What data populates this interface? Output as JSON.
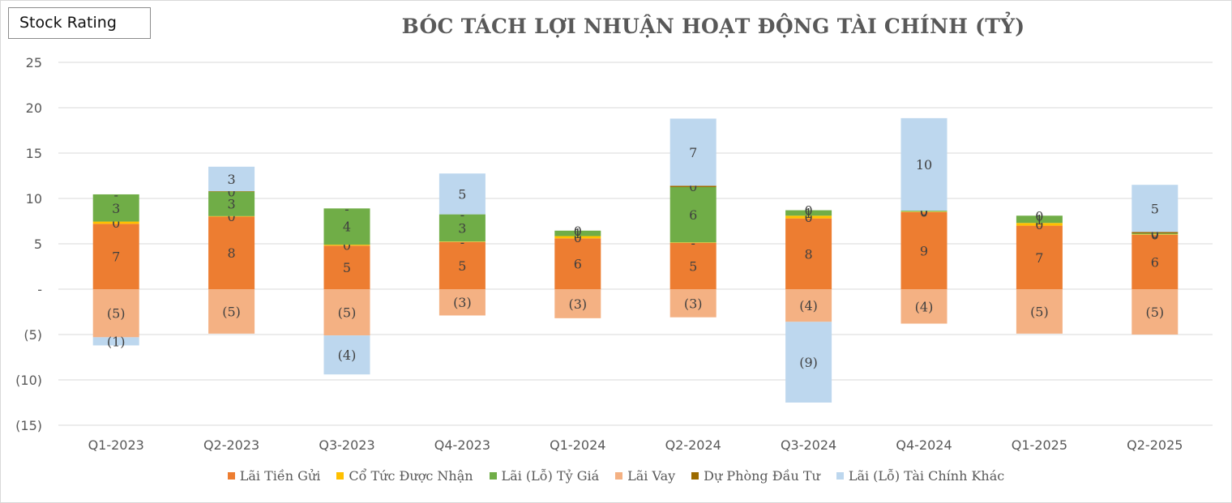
{
  "badge_label": "Stock Rating",
  "chart_data": {
    "type": "bar",
    "stacked": true,
    "title": "BÓC TÁCH LỢI NHUẬN HOẠT ĐỘNG TÀI CHÍNH (TỶ)",
    "categories": [
      "Q1-2023",
      "Q2-2023",
      "Q3-2023",
      "Q4-2023",
      "Q1-2024",
      "Q2-2024",
      "Q3-2024",
      "Q4-2024",
      "Q1-2025",
      "Q2-2025"
    ],
    "ylim": [
      -15,
      25
    ],
    "yticks": [
      25,
      20,
      15,
      10,
      5,
      0,
      -5,
      -10,
      -15
    ],
    "ytick_labels": [
      "25",
      "20",
      "15",
      "10",
      "5",
      "-",
      "(5)",
      "(10)",
      "(15)"
    ],
    "grid": true,
    "legend_position": "bottom",
    "series": [
      {
        "name": "Lãi Tiền Gửi",
        "color": "#ED7D31",
        "values": [
          7.2,
          8.0,
          4.8,
          5.2,
          5.6,
          5.1,
          7.8,
          8.5,
          7.0,
          6.0
        ],
        "labels": [
          "7",
          "8",
          "5",
          "5",
          "6",
          "5",
          "8",
          "9",
          "7",
          "6"
        ]
      },
      {
        "name": "Cổ Tức Được Nhận",
        "color": "#FFC000",
        "values": [
          0.25,
          0.05,
          0.1,
          0.05,
          0.25,
          0.05,
          0.3,
          0.05,
          0.3,
          0.05
        ],
        "labels": [
          "0",
          "0",
          "0",
          "-",
          "0",
          "-",
          "0",
          "0",
          "0",
          "0"
        ]
      },
      {
        "name": "Lãi (Lỗ) Tỷ Giá",
        "color": "#70AD47",
        "values": [
          3.0,
          2.7,
          4.0,
          3.0,
          0.6,
          6.1,
          0.6,
          0.1,
          0.8,
          0.1
        ],
        "labels": [
          "3",
          "3",
          "4",
          "3",
          "1",
          "6",
          "1",
          "0",
          "1",
          "0"
        ]
      },
      {
        "name": "Lãi Vay",
        "color": "#F4B183",
        "values": [
          -5.3,
          -4.9,
          -5.1,
          -2.9,
          -3.2,
          -3.1,
          -3.6,
          -3.8,
          -4.9,
          -5.0
        ],
        "labels": [
          "(5)",
          "(5)",
          "(5)",
          "(3)",
          "(3)",
          "(3)",
          "(4)",
          "(4)",
          "(5)",
          "(5)"
        ]
      },
      {
        "name": "Dự Phòng Đầu Tư",
        "color": "#9C6B00",
        "values": [
          0,
          0.05,
          0,
          0,
          0,
          0.15,
          0,
          0,
          0,
          0.15
        ],
        "labels": [
          "-",
          "0",
          "-",
          "-",
          "0",
          "0",
          "0",
          "0",
          "0",
          "0"
        ]
      },
      {
        "name": "Lãi (Lỗ) Tài Chính Khác",
        "color": "#BDD7EE",
        "values": [
          -0.9,
          2.7,
          -4.3,
          4.5,
          0,
          7.4,
          -8.9,
          10.2,
          0,
          5.2
        ],
        "labels": [
          "(1)",
          "3",
          "(4)",
          "5",
          "",
          "7",
          "(9)",
          "10",
          "",
          "5"
        ]
      }
    ]
  }
}
